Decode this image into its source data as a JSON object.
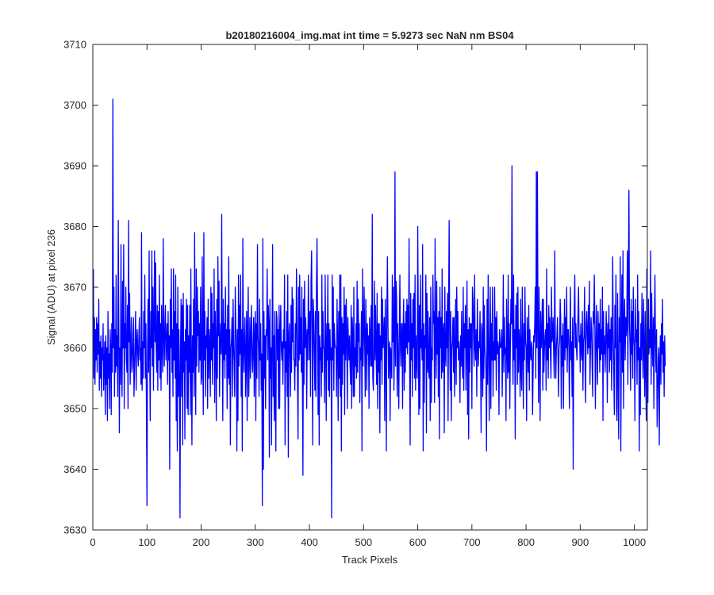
{
  "chart_data": {
    "type": "line",
    "title": "b20180216004_img.mat int time = 5.9273 sec  NaN nm BS04",
    "xlabel": "Track Pixels",
    "ylabel": "Signal (ADU) at pixel 236",
    "xlim": [
      0,
      1024
    ],
    "ylim": [
      3630,
      3710
    ],
    "xticks": [
      0,
      100,
      200,
      300,
      400,
      500,
      600,
      700,
      800,
      900,
      1000
    ],
    "yticks": [
      3630,
      3640,
      3650,
      3660,
      3670,
      3680,
      3690,
      3700,
      3710
    ],
    "grid": false,
    "series_color": "#0000ff",
    "series": [
      {
        "x_start": 1,
        "x_step": 1,
        "values": [
          3673,
          3655,
          3665,
          3654,
          3663,
          3658,
          3665,
          3656,
          3664,
          3659,
          3668,
          3653,
          3661,
          3655,
          3662,
          3652,
          3660,
          3658,
          3664,
          3653,
          3657,
          3661,
          3649,
          3662,
          3654,
          3660,
          3648,
          3666,
          3655,
          3659,
          3650,
          3663,
          3660,
          3649,
          3664,
          3656,
          3701,
          3660,
          3670,
          3652,
          3663,
          3656,
          3672,
          3657,
          3662,
          3652,
          3681,
          3663,
          3646,
          3660,
          3654,
          3677,
          3657,
          3652,
          3671,
          3660,
          3677,
          3650,
          3664,
          3660,
          3670,
          3658,
          3656,
          3667,
          3650,
          3681,
          3661,
          3669,
          3654,
          3660,
          3665,
          3656,
          3657,
          3662,
          3665,
          3652,
          3656,
          3661,
          3666,
          3653,
          3661,
          3663,
          3659,
          3657,
          3662,
          3665,
          3658,
          3660,
          3654,
          3679,
          3653,
          3661,
          3655,
          3666,
          3660,
          3672,
          3655,
          3664,
          3650,
          3634,
          3660,
          3668,
          3656,
          3676,
          3659,
          3648,
          3666,
          3660,
          3676,
          3657,
          3670,
          3653,
          3664,
          3676,
          3661,
          3674,
          3660,
          3656,
          3667,
          3653,
          3666,
          3658,
          3672,
          3655,
          3664,
          3653,
          3667,
          3660,
          3656,
          3678,
          3662,
          3657,
          3664,
          3667,
          3658,
          3661,
          3664,
          3654,
          3666,
          3658,
          3662,
          3640,
          3668,
          3660,
          3673,
          3656,
          3663,
          3652,
          3673,
          3658,
          3666,
          3655,
          3672,
          3648,
          3664,
          3643,
          3670,
          3652,
          3663,
          3655,
          3632,
          3660,
          3668,
          3652,
          3667,
          3644,
          3669,
          3656,
          3661,
          3645,
          3663,
          3658,
          3668,
          3650,
          3667,
          3649,
          3662,
          3656,
          3667,
          3649,
          3673,
          3658,
          3644,
          3662,
          3656,
          3668,
          3652,
          3679,
          3660,
          3649,
          3673,
          3657,
          3670,
          3662,
          3666,
          3656,
          3664,
          3658,
          3670,
          3654,
          3655,
          3675,
          3661,
          3649,
          3679,
          3658,
          3666,
          3652,
          3662,
          3660,
          3665,
          3650,
          3668,
          3655,
          3663,
          3660,
          3652,
          3670,
          3658,
          3669,
          3654,
          3664,
          3660,
          3673,
          3651,
          3666,
          3661,
          3648,
          3668,
          3655,
          3675,
          3662,
          3671,
          3652,
          3661,
          3664,
          3659,
          3682,
          3661,
          3648,
          3668,
          3658,
          3664,
          3655,
          3670,
          3659,
          3663,
          3650,
          3667,
          3655,
          3675,
          3654,
          3663,
          3644,
          3660,
          3661,
          3665,
          3652,
          3668,
          3661,
          3657,
          3652,
          3670,
          3664,
          3660,
          3643,
          3663,
          3648,
          3672,
          3657,
          3667,
          3659,
          3672,
          3652,
          3663,
          3643,
          3678,
          3661,
          3656,
          3662,
          3665,
          3652,
          3658,
          3666,
          3648,
          3663,
          3670,
          3652,
          3658,
          3665,
          3655,
          3662,
          3667,
          3658,
          3656,
          3661,
          3665,
          3652,
          3662,
          3666,
          3648,
          3664,
          3655,
          3677,
          3662,
          3660,
          3652,
          3668,
          3658,
          3664,
          3653,
          3659,
          3634,
          3678,
          3640,
          3666,
          3655,
          3662,
          3650,
          3663,
          3662,
          3673,
          3658,
          3667,
          3664,
          3642,
          3668,
          3655,
          3660,
          3644,
          3662,
          3677,
          3652,
          3662,
          3648,
          3666,
          3652,
          3643,
          3666,
          3665,
          3658,
          3663,
          3650,
          3667,
          3650,
          3663,
          3667,
          3660,
          3658,
          3661,
          3654,
          3663,
          3660,
          3672,
          3644,
          3661,
          3656,
          3666,
          3652,
          3672,
          3642,
          3662,
          3664,
          3658,
          3652,
          3667,
          3656,
          3670,
          3661,
          3668,
          3658,
          3658,
          3653,
          3664,
          3657,
          3673,
          3666,
          3655,
          3645,
          3670,
          3658,
          3672,
          3659,
          3665,
          3656,
          3670,
          3655,
          3639,
          3668,
          3654,
          3671,
          3660,
          3665,
          3662,
          3650,
          3663,
          3658,
          3672,
          3664,
          3658,
          3666,
          3652,
          3671,
          3676,
          3663,
          3644,
          3668,
          3665,
          3659,
          3653,
          3666,
          3652,
          3670,
          3678,
          3665,
          3649,
          3666,
          3644,
          3662,
          3658,
          3660,
          3652,
          3672,
          3656,
          3666,
          3660,
          3660,
          3651,
          3672,
          3661,
          3648,
          3664,
          3658,
          3672,
          3653,
          3664,
          3652,
          3663,
          3658,
          3660,
          3632,
          3672,
          3658,
          3670,
          3653,
          3664,
          3661,
          3660,
          3660,
          3652,
          3668,
          3661,
          3648,
          3666,
          3655,
          3672,
          3652,
          3672,
          3643,
          3665,
          3654,
          3664,
          3659,
          3670,
          3649,
          3667,
          3658,
          3668,
          3662,
          3650,
          3665,
          3661,
          3658,
          3662,
          3657,
          3654,
          3667,
          3650,
          3665,
          3662,
          3652,
          3670,
          3652,
          3660,
          3657,
          3664,
          3655,
          3671,
          3656,
          3668,
          3661,
          3664,
          3651,
          3660,
          3658,
          3666,
          3643,
          3673,
          3657,
          3662,
          3670,
          3661,
          3652,
          3668,
          3663,
          3653,
          3664,
          3659,
          3662,
          3650,
          3665,
          3661,
          3657,
          3667,
          3657,
          3682,
          3655,
          3653,
          3660,
          3671,
          3658,
          3667,
          3660,
          3654,
          3669,
          3650,
          3664,
          3656,
          3664,
          3646,
          3662,
          3658,
          3670,
          3654,
          3668,
          3660,
          3662,
          3665,
          3648,
          3668,
          3662,
          3643,
          3666,
          3675,
          3664,
          3655,
          3660,
          3661,
          3648,
          3660,
          3658,
          3655,
          3672,
          3661,
          3670,
          3653,
          3660,
          3689,
          3657,
          3671,
          3668,
          3652,
          3664,
          3658,
          3650,
          3663,
          3672,
          3660,
          3657,
          3664,
          3664,
          3650,
          3663,
          3668,
          3653,
          3664,
          3656,
          3666,
          3660,
          3668,
          3659,
          3667,
          3661,
          3678,
          3658,
          3644,
          3669,
          3658,
          3664,
          3652,
          3668,
          3660,
          3669,
          3655,
          3672,
          3653,
          3662,
          3658,
          3655,
          3680,
          3665,
          3649,
          3667,
          3650,
          3672,
          3660,
          3663,
          3658,
          3677,
          3643,
          3664,
          3651,
          3662,
          3660,
          3672,
          3646,
          3669,
          3656,
          3666,
          3657,
          3655,
          3665,
          3648,
          3670,
          3651,
          3660,
          3658,
          3672,
          3664,
          3666,
          3651,
          3678,
          3661,
          3655,
          3671,
          3659,
          3665,
          3652,
          3666,
          3645,
          3670,
          3660,
          3665,
          3655,
          3673,
          3656,
          3662,
          3664,
          3646,
          3670,
          3659,
          3657,
          3666,
          3660,
          3669,
          3648,
          3667,
          3681,
          3662,
          3653,
          3666,
          3648,
          3660,
          3661,
          3665,
          3656,
          3665,
          3652,
          3660,
          3668,
          3654,
          3670,
          3660,
          3666,
          3658,
          3661,
          3659,
          3651,
          3662,
          3657,
          3666,
          3658,
          3655,
          3670,
          3653,
          3664,
          3660,
          3667,
          3653,
          3662,
          3671,
          3649,
          3663,
          3645,
          3665,
          3656,
          3664,
          3660,
          3664,
          3650,
          3670,
          3668,
          3662,
          3657,
          3672,
          3660,
          3658,
          3663,
          3652,
          3668,
          3661,
          3657,
          3661,
          3660,
          3666,
          3658,
          3646,
          3664,
          3662,
          3652,
          3670,
          3655,
          3667,
          3660,
          3658,
          3656,
          3643,
          3668,
          3654,
          3672,
          3662,
          3648,
          3660,
          3670,
          3650,
          3664,
          3658,
          3670,
          3652,
          3661,
          3658,
          3670,
          3658,
          3665,
          3653,
          3666,
          3659,
          3661,
          3660,
          3649,
          3663,
          3660,
          3660,
          3661,
          3663,
          3652,
          3660,
          3672,
          3656,
          3665,
          3659,
          3660,
          3648,
          3668,
          3660,
          3655,
          3672,
          3656,
          3664,
          3650,
          3660,
          3668,
          3664,
          3690,
          3662,
          3654,
          3672,
          3658,
          3663,
          3645,
          3667,
          3660,
          3669,
          3654,
          3670,
          3656,
          3663,
          3661,
          3652,
          3668,
          3656,
          3653,
          3670,
          3660,
          3650,
          3664,
          3658,
          3670,
          3661,
          3660,
          3648,
          3665,
          3660,
          3656,
          3667,
          3653,
          3663,
          3659,
          3658,
          3661,
          3660,
          3649,
          3656,
          3662,
          3661,
          3664,
          3670,
          3655,
          3689,
          3660,
          3689,
          3664,
          3651,
          3670,
          3661,
          3648,
          3666,
          3660,
          3662,
          3668,
          3653,
          3668,
          3656,
          3660,
          3662,
          3663,
          3653,
          3673,
          3658,
          3664,
          3655,
          3667,
          3660,
          3665,
          3659,
          3655,
          3670,
          3661,
          3662,
          3665,
          3659,
          3655,
          3676,
          3661,
          3655,
          3660,
          3662,
          3665,
          3658,
          3652,
          3660,
          3661,
          3668,
          3665,
          3650,
          3662,
          3657,
          3664,
          3650,
          3660,
          3668,
          3658,
          3665,
          3660,
          3670,
          3656,
          3663,
          3663,
          3660,
          3650,
          3662,
          3670,
          3658,
          3661,
          3652,
          3665,
          3640,
          3660,
          3666,
          3672,
          3660,
          3664,
          3660,
          3658,
          3662,
          3666,
          3670,
          3661,
          3662,
          3656,
          3664,
          3660,
          3658,
          3666,
          3653,
          3661,
          3662,
          3670,
          3656,
          3651,
          3664,
          3666,
          3662,
          3659,
          3667,
          3660,
          3671,
          3654,
          3660,
          3665,
          3663,
          3657,
          3652,
          3666,
          3664,
          3672,
          3665,
          3650,
          3660,
          3667,
          3659,
          3654,
          3666,
          3660,
          3664,
          3656,
          3668,
          3658,
          3663,
          3659,
          3670,
          3648,
          3666,
          3659,
          3662,
          3656,
          3660,
          3666,
          3662,
          3651,
          3664,
          3660,
          3667,
          3656,
          3663,
          3658,
          3665,
          3653,
          3660,
          3675,
          3662,
          3656,
          3649,
          3667,
          3660,
          3672,
          3650,
          3648,
          3669,
          3656,
          3645,
          3665,
          3661,
          3675,
          3643,
          3660,
          3672,
          3656,
          3676,
          3650,
          3664,
          3668,
          3658,
          3665,
          3662,
          3664,
          3676,
          3654,
          3672,
          3686,
          3664,
          3660,
          3653,
          3668,
          3659,
          3666,
          3655,
          3670,
          3662,
          3660,
          3648,
          3668,
          3661,
          3663,
          3654,
          3672,
          3658,
          3666,
          3643,
          3660,
          3649,
          3664,
          3658,
          3669,
          3661,
          3655,
          3668,
          3660,
          3652,
          3666,
          3656,
          3648,
          3673,
          3661,
          3651,
          3668,
          3659,
          3663,
          3660,
          3676,
          3654,
          3669,
          3661,
          3657,
          3665,
          3650,
          3663,
          3672,
          3660,
          3656,
          3663,
          3647,
          3652,
          3658,
          3660,
          3644,
          3658,
          3662,
          3654,
          3664,
          3659,
          3668,
          3656,
          3661,
          3652,
          3662,
          3657
        ]
      }
    ]
  }
}
